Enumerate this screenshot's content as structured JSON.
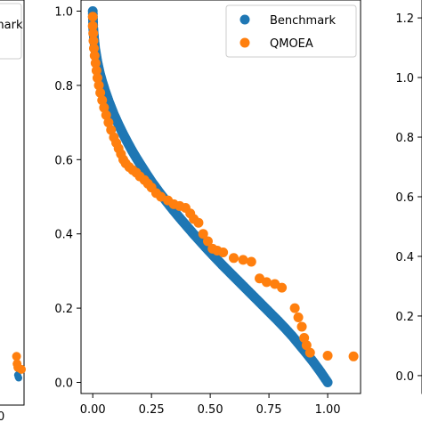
{
  "colors": {
    "benchmark": "#1f77b4",
    "qmoea": "#ff7f0e"
  },
  "left_panel": {
    "legend_fragment": "mark",
    "bench_points": [
      [
        0.98,
        0.02
      ],
      [
        0.99,
        0.015
      ],
      [
        1.0,
        0.012
      ]
    ],
    "qmoea_points": [
      [
        0.96,
        0.07
      ],
      [
        0.97,
        0.05
      ],
      [
        0.985,
        0.04
      ],
      [
        1.05,
        0.035
      ]
    ]
  },
  "right_panel": {
    "ytick_labels": [
      "0.0",
      "0.2",
      "0.4",
      "0.6",
      "0.8",
      "1.0",
      "1.2"
    ]
  },
  "chart_data": {
    "type": "scatter",
    "xlim": [
      -0.05,
      1.14
    ],
    "ylim": [
      -0.03,
      1.03
    ],
    "xticks": [
      0.0,
      0.25,
      0.5,
      0.75,
      1.0
    ],
    "xtick_labels": [
      "0.00",
      "0.25",
      "0.50",
      "0.75",
      "1.00"
    ],
    "yticks": [
      0.0,
      0.2,
      0.4,
      0.6,
      0.8,
      1.0
    ],
    "ytick_labels": [
      "0.0",
      "0.2",
      "0.4",
      "0.6",
      "0.8",
      "1.0"
    ],
    "legend_placement": "top-right",
    "series": [
      {
        "name": "Benchmark",
        "color": "#1f77b4",
        "curve": "y = (1 - sqrt(x))^1.35 style concave front from (0,1) to (1,0)",
        "points": [
          [
            0.0,
            1.0
          ],
          [
            0.002,
            0.955
          ],
          [
            0.005,
            0.93
          ],
          [
            0.01,
            0.9
          ],
          [
            0.02,
            0.862
          ],
          [
            0.03,
            0.833
          ],
          [
            0.04,
            0.81
          ],
          [
            0.05,
            0.79
          ],
          [
            0.07,
            0.754
          ],
          [
            0.09,
            0.722
          ],
          [
            0.11,
            0.694
          ],
          [
            0.13,
            0.668
          ],
          [
            0.15,
            0.644
          ],
          [
            0.17,
            0.621
          ],
          [
            0.19,
            0.6
          ],
          [
            0.21,
            0.58
          ],
          [
            0.23,
            0.56
          ],
          [
            0.25,
            0.541
          ],
          [
            0.28,
            0.515
          ],
          [
            0.31,
            0.49
          ],
          [
            0.34,
            0.466
          ],
          [
            0.37,
            0.443
          ],
          [
            0.4,
            0.421
          ],
          [
            0.43,
            0.399
          ],
          [
            0.46,
            0.378
          ],
          [
            0.49,
            0.357
          ],
          [
            0.52,
            0.337
          ],
          [
            0.55,
            0.317
          ],
          [
            0.58,
            0.298
          ],
          [
            0.61,
            0.279
          ],
          [
            0.64,
            0.26
          ],
          [
            0.67,
            0.241
          ],
          [
            0.7,
            0.222
          ],
          [
            0.73,
            0.203
          ],
          [
            0.76,
            0.184
          ],
          [
            0.79,
            0.165
          ],
          [
            0.82,
            0.145
          ],
          [
            0.85,
            0.124
          ],
          [
            0.88,
            0.101
          ],
          [
            0.91,
            0.078
          ],
          [
            0.94,
            0.054
          ],
          [
            0.97,
            0.028
          ],
          [
            1.0,
            0.0
          ]
        ]
      },
      {
        "name": "QMOEA",
        "color": "#ff7f0e",
        "points": [
          [
            0.0,
            0.985
          ],
          [
            0.0,
            0.96
          ],
          [
            0.002,
            0.94
          ],
          [
            0.003,
            0.92
          ],
          [
            0.005,
            0.9
          ],
          [
            0.008,
            0.88
          ],
          [
            0.012,
            0.86
          ],
          [
            0.016,
            0.84
          ],
          [
            0.02,
            0.82
          ],
          [
            0.026,
            0.8
          ],
          [
            0.032,
            0.78
          ],
          [
            0.04,
            0.76
          ],
          [
            0.048,
            0.74
          ],
          [
            0.057,
            0.72
          ],
          [
            0.067,
            0.7
          ],
          [
            0.078,
            0.68
          ],
          [
            0.09,
            0.66
          ],
          [
            0.1,
            0.645
          ],
          [
            0.11,
            0.63
          ],
          [
            0.12,
            0.615
          ],
          [
            0.13,
            0.6
          ],
          [
            0.14,
            0.59
          ],
          [
            0.155,
            0.58
          ],
          [
            0.17,
            0.572
          ],
          [
            0.185,
            0.565
          ],
          [
            0.2,
            0.555
          ],
          [
            0.22,
            0.545
          ],
          [
            0.235,
            0.535
          ],
          [
            0.25,
            0.525
          ],
          [
            0.27,
            0.51
          ],
          [
            0.29,
            0.5
          ],
          [
            0.32,
            0.49
          ],
          [
            0.345,
            0.48
          ],
          [
            0.37,
            0.475
          ],
          [
            0.395,
            0.47
          ],
          [
            0.415,
            0.455
          ],
          [
            0.43,
            0.44
          ],
          [
            0.45,
            0.43
          ],
          [
            0.47,
            0.4
          ],
          [
            0.49,
            0.38
          ],
          [
            0.51,
            0.36
          ],
          [
            0.53,
            0.355
          ],
          [
            0.555,
            0.35
          ],
          [
            0.6,
            0.335
          ],
          [
            0.64,
            0.33
          ],
          [
            0.675,
            0.325
          ],
          [
            0.71,
            0.28
          ],
          [
            0.74,
            0.27
          ],
          [
            0.775,
            0.265
          ],
          [
            0.805,
            0.255
          ],
          [
            0.86,
            0.2
          ],
          [
            0.875,
            0.175
          ],
          [
            0.89,
            0.15
          ],
          [
            0.9,
            0.12
          ],
          [
            0.91,
            0.1
          ],
          [
            0.925,
            0.08
          ],
          [
            1.0,
            0.072
          ],
          [
            1.11,
            0.07
          ]
        ]
      }
    ]
  }
}
